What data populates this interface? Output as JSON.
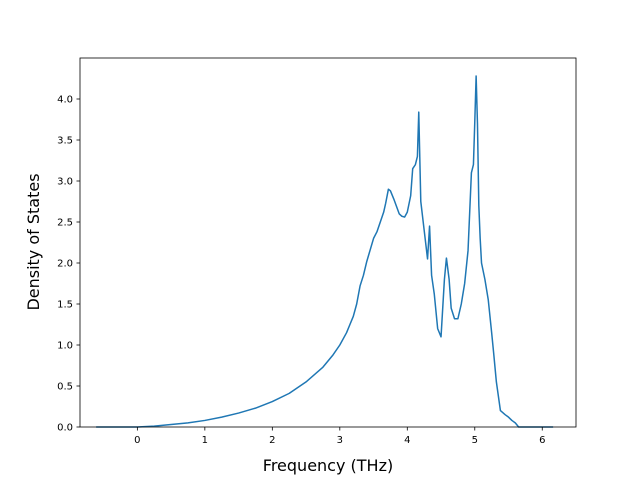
{
  "chart_data": {
    "type": "line",
    "title": "",
    "xlabel": "Frequency (THz)",
    "ylabel": "Density of States",
    "xlim": [
      -0.85,
      6.5
    ],
    "ylim": [
      0.0,
      4.5
    ],
    "xticks": [
      0,
      1,
      2,
      3,
      4,
      5,
      6
    ],
    "yticks": [
      0.0,
      0.5,
      1.0,
      1.5,
      2.0,
      2.5,
      3.0,
      3.5,
      4.0
    ],
    "xtick_labels": [
      "0",
      "1",
      "2",
      "3",
      "4",
      "5",
      "6"
    ],
    "ytick_labels": [
      "0.0",
      "0.5",
      "1.0",
      "1.5",
      "2.0",
      "2.5",
      "3.0",
      "3.5",
      "4.0"
    ],
    "grid": false,
    "line_color": "#1f77b4",
    "series": [
      {
        "x": [
          -0.6,
          -0.3,
          0.0,
          0.25,
          0.5,
          0.75,
          1.0,
          1.25,
          1.5,
          1.75,
          2.0,
          2.25,
          2.5,
          2.75,
          2.9,
          3.0,
          3.1,
          3.15,
          3.2,
          3.25,
          3.3,
          3.35,
          3.4,
          3.5,
          3.55,
          3.6,
          3.65,
          3.68,
          3.72,
          3.75,
          3.8,
          3.88,
          3.92,
          3.96,
          4.0,
          4.05,
          4.08,
          4.12,
          4.15,
          4.17,
          4.2,
          4.25,
          4.3,
          4.33,
          4.36,
          4.4,
          4.45,
          4.5,
          4.55,
          4.58,
          4.62,
          4.65,
          4.7,
          4.75,
          4.8,
          4.85,
          4.9,
          4.95,
          4.98,
          5.0,
          5.02,
          5.04,
          5.06,
          5.08,
          5.1,
          5.15,
          5.2,
          5.25,
          5.28,
          5.32,
          5.38,
          5.45,
          5.5,
          5.55,
          5.6,
          5.65,
          5.8,
          6.0,
          6.15
        ],
        "y": [
          0.0,
          0.0,
          0.0,
          0.01,
          0.03,
          0.05,
          0.08,
          0.12,
          0.17,
          0.23,
          0.31,
          0.41,
          0.55,
          0.73,
          0.88,
          1.0,
          1.15,
          1.25,
          1.35,
          1.5,
          1.72,
          1.85,
          2.02,
          2.3,
          2.38,
          2.5,
          2.62,
          2.73,
          2.9,
          2.88,
          2.78,
          2.6,
          2.57,
          2.56,
          2.62,
          2.82,
          3.15,
          3.2,
          3.3,
          3.84,
          2.75,
          2.4,
          2.05,
          2.45,
          1.85,
          1.62,
          1.2,
          1.1,
          1.8,
          2.06,
          1.8,
          1.45,
          1.32,
          1.32,
          1.5,
          1.75,
          2.15,
          3.1,
          3.2,
          3.72,
          4.28,
          3.7,
          2.7,
          2.3,
          2.0,
          1.8,
          1.55,
          1.15,
          0.9,
          0.55,
          0.2,
          0.15,
          0.12,
          0.08,
          0.05,
          0.0,
          0.0,
          0.0,
          0.0
        ]
      }
    ]
  }
}
